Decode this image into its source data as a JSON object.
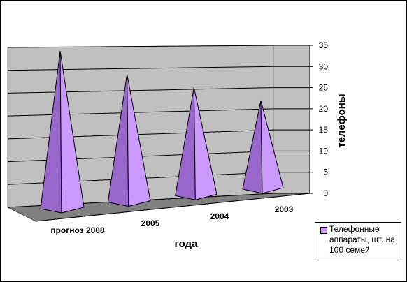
{
  "chart_data": {
    "type": "bar",
    "style": "3d-pyramid",
    "categories": [
      "прогноз 2008",
      "2005",
      "2004",
      "2003"
    ],
    "series": [
      {
        "name": "Телефонные аппараты, шт. на 100 семей",
        "values": [
          34,
          28,
          24,
          20
        ],
        "color": "#cc99ff"
      }
    ],
    "xlabel": "года",
    "ylabel": "телефоны",
    "ylim": [
      0,
      35
    ],
    "yticks": [
      0,
      5,
      10,
      15,
      20,
      25,
      30,
      35
    ],
    "grid": true,
    "legend": "bottom-right"
  }
}
